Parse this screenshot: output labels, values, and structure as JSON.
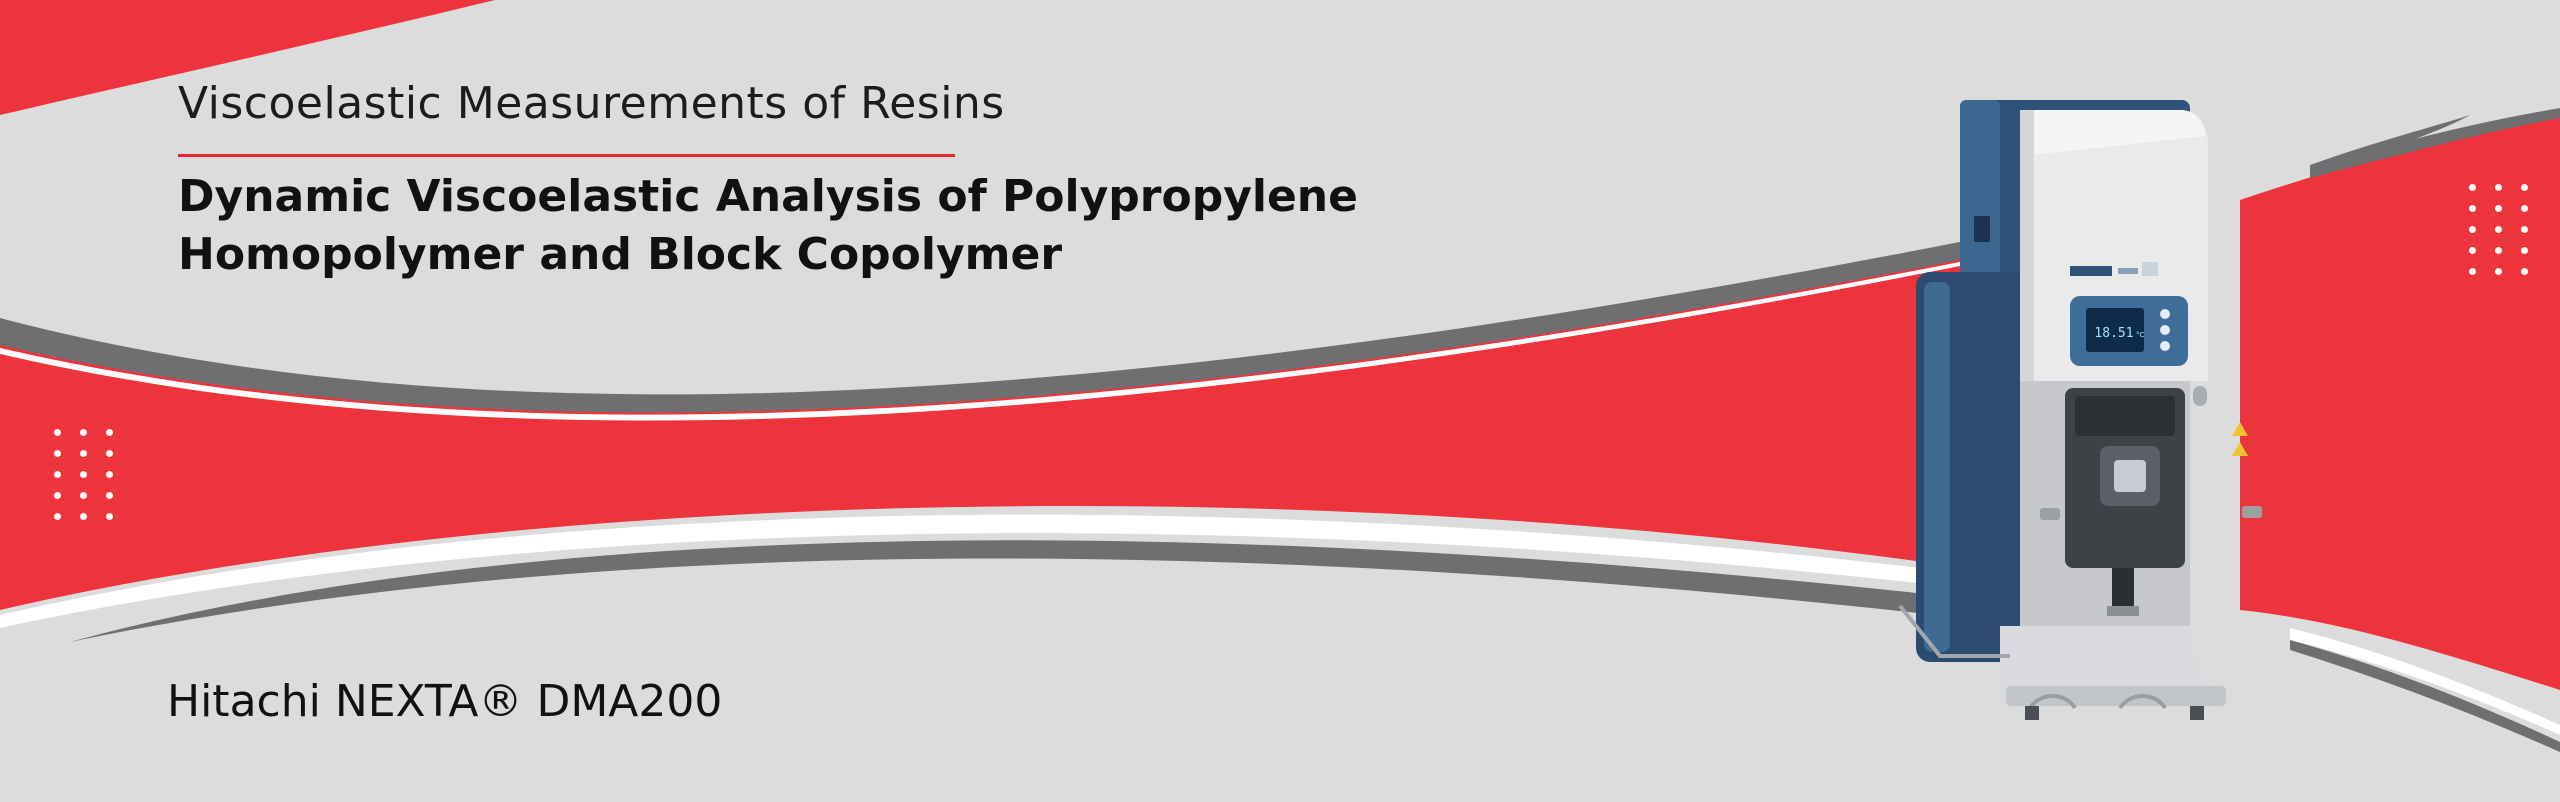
{
  "banner": {
    "subtitle": "Viscoelastic Measurements of Resins",
    "title_line_1": "Dynamic Viscoelastic Analysis of Polypropylene",
    "title_line_2": "Homopolymer and Block Copolymer",
    "product_name": "Hitachi NEXTA® DMA200"
  },
  "instrument_display": {
    "reading": "18.51",
    "unit": "°C"
  },
  "colors": {
    "background": "#dcdcdd",
    "accent_red": "#ed333b",
    "swoosh_gray": "#6f6f71",
    "instrument_blue": "#2f5378",
    "instrument_white": "#e9eaec"
  }
}
